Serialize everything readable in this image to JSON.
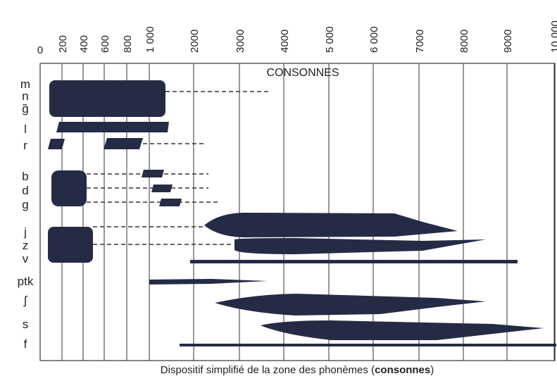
{
  "header": "CONSONNES",
  "axis_ticks": [
    "0",
    "200",
    "400",
    "600",
    "800",
    "1 000",
    "2000",
    "3000",
    "4000",
    "5 000",
    "6 000",
    "7000",
    "8000",
    "9000",
    "10 000"
  ],
  "phonemes": [
    "m",
    "n",
    "g̃",
    "l",
    "r",
    "b",
    "d",
    "g",
    "j",
    "z",
    "v",
    "ptk",
    "ʃ",
    "s",
    "f"
  ],
  "caption": {
    "before": "Dispositif simplifié de la zone des phonèmes (",
    "bold": "consonnes",
    "after": ")"
  }
}
